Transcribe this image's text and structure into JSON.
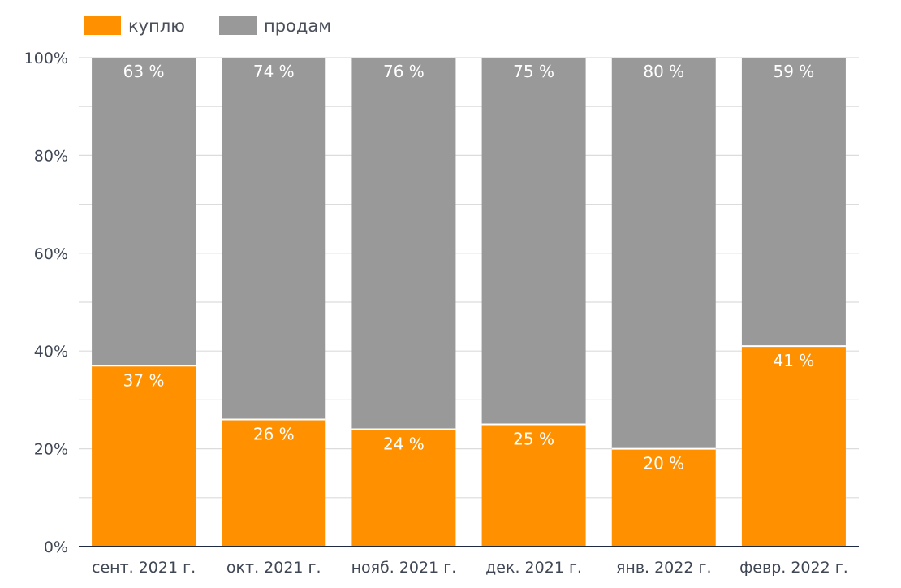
{
  "chart_data": {
    "type": "bar",
    "stacked": true,
    "categories": [
      "сент. 2021 г.",
      "окт. 2021 г.",
      "нояб. 2021 г.",
      "дек. 2021 г.",
      "янв. 2022 г.",
      "февр. 2022 г."
    ],
    "series": [
      {
        "name": "куплю",
        "color": "#ff9000",
        "values": [
          37,
          26,
          24,
          25,
          20,
          41
        ],
        "labels": [
          "37 %",
          "26 %",
          "24 %",
          "25 %",
          "20 %",
          "41 %"
        ]
      },
      {
        "name": "продам",
        "color": "#999999",
        "values": [
          63,
          74,
          76,
          75,
          80,
          59
        ],
        "labels": [
          "63 %",
          "74 %",
          "76 %",
          "75 %",
          "80 %",
          "59 %"
        ]
      }
    ],
    "ylim": [
      0,
      100
    ],
    "yticks": [
      0,
      20,
      40,
      60,
      80,
      100
    ],
    "ytick_labels": [
      "0%",
      "20%",
      "40%",
      "60%",
      "80%",
      "100%"
    ],
    "grid": true,
    "legend_position": "top-left",
    "title": "",
    "xlabel": "",
    "ylabel": ""
  }
}
